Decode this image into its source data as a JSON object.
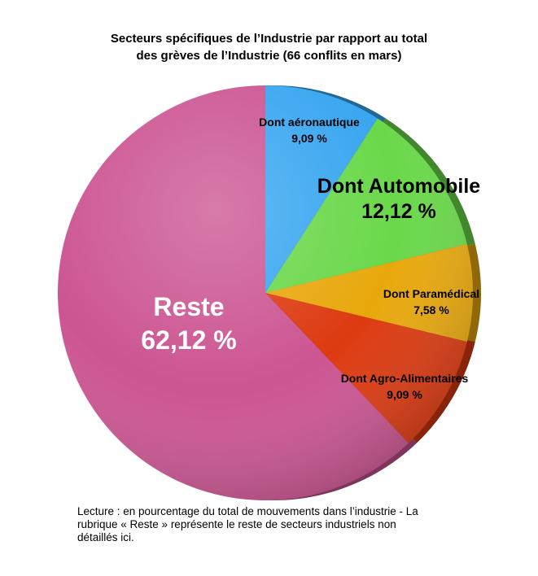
{
  "chart_data": {
    "type": "pie",
    "title": [
      "Secteurs spécifiques de l’Industrie par rapport au total",
      "des grèves de l’Industrie (66 conflits en mars)"
    ],
    "slices": [
      {
        "name": "Dont aéronautique",
        "label": "Dont aéronautique",
        "value_label": "9,09 %",
        "value": 9.09,
        "color": "#38a6f0"
      },
      {
        "name": "Dont Automobile",
        "label": "Dont Automobile",
        "value_label": "12,12 %",
        "value": 12.12,
        "color": "#6ad84a"
      },
      {
        "name": "Dont Paramédical",
        "label": "Dont Paramédical",
        "value_label": "7,58 %",
        "value": 7.58,
        "color": "#e8a80c"
      },
      {
        "name": "Dont Agro-Alimentaires",
        "label": "Dont Agro-Alimentaires",
        "value_label": "9,09 %",
        "value": 9.09,
        "color": "#dd3a10"
      },
      {
        "name": "Reste",
        "label": "Reste",
        "value_label": "62,12 %",
        "value": 62.12,
        "color": "#cc5592"
      }
    ]
  },
  "caption": [
    "Lecture : en pourcentage du total de mouvements dans l’industrie - La",
    "rubrique « Reste » représente le reste de secteurs industriels non",
    "détaillés ici."
  ]
}
